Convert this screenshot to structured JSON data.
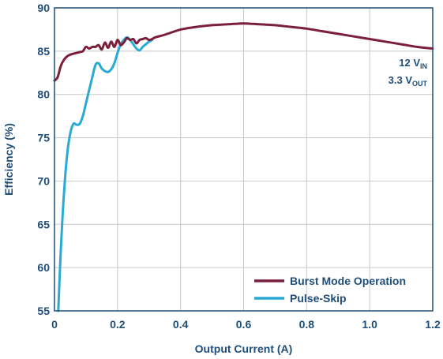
{
  "chart_data": {
    "type": "line",
    "xlabel": "Output Current (A)",
    "ylabel": "Efficiency (%)",
    "xlim": [
      0,
      1.2
    ],
    "ylim": [
      55,
      90
    ],
    "xticks": [
      "0",
      "0.2",
      "0.4",
      "0.6",
      "0.8",
      "1.0",
      "1.2"
    ],
    "yticks": [
      "55",
      "60",
      "65",
      "70",
      "75",
      "80",
      "85",
      "90"
    ],
    "grid": true,
    "legend_position": "bottom-right",
    "annotation": {
      "line1": {
        "main": "12 V",
        "sub": "IN"
      },
      "line2": {
        "main": "3.3 V",
        "sub": "OUT"
      }
    },
    "series": [
      {
        "name": "Burst Mode Operation",
        "color": "#7b1f3a",
        "x": [
          0.0,
          0.01,
          0.02,
          0.03,
          0.04,
          0.05,
          0.06,
          0.07,
          0.08,
          0.09,
          0.1,
          0.11,
          0.12,
          0.13,
          0.14,
          0.15,
          0.16,
          0.17,
          0.18,
          0.19,
          0.2,
          0.21,
          0.22,
          0.23,
          0.24,
          0.25,
          0.26,
          0.27,
          0.28,
          0.29,
          0.3,
          0.31,
          0.32,
          0.35,
          0.4,
          0.45,
          0.5,
          0.55,
          0.6,
          0.65,
          0.7,
          0.75,
          0.8,
          0.85,
          0.9,
          0.95,
          1.0,
          1.05,
          1.1,
          1.15,
          1.2
        ],
        "y": [
          81.6,
          82.0,
          83.3,
          84.0,
          84.4,
          84.6,
          84.7,
          84.8,
          84.9,
          85.0,
          85.5,
          85.3,
          85.5,
          85.5,
          85.7,
          85.2,
          86.0,
          85.4,
          86.1,
          85.5,
          86.3,
          85.7,
          86.0,
          86.5,
          86.3,
          86.4,
          85.9,
          86.3,
          86.4,
          86.5,
          86.3,
          86.4,
          86.6,
          86.9,
          87.5,
          87.8,
          88.0,
          88.1,
          88.2,
          88.1,
          88.0,
          87.8,
          87.6,
          87.3,
          87.0,
          86.7,
          86.4,
          86.1,
          85.8,
          85.5,
          85.3
        ]
      },
      {
        "name": "Pulse-Skip",
        "color": "#29a9d4",
        "x": [
          0.012,
          0.02,
          0.03,
          0.04,
          0.05,
          0.06,
          0.07,
          0.08,
          0.09,
          0.1,
          0.11,
          0.12,
          0.13,
          0.14,
          0.15,
          0.16,
          0.17,
          0.18,
          0.19,
          0.2,
          0.21,
          0.22,
          0.23,
          0.24,
          0.25,
          0.26,
          0.27,
          0.28,
          0.29,
          0.3,
          0.31
        ],
        "y": [
          55.0,
          62.0,
          68.5,
          73.0,
          75.5,
          76.6,
          76.5,
          76.6,
          77.5,
          79.0,
          80.5,
          82.0,
          83.4,
          83.6,
          83.0,
          82.7,
          82.6,
          82.9,
          83.6,
          84.8,
          85.8,
          86.3,
          86.6,
          86.3,
          85.8,
          85.3,
          85.1,
          85.5,
          85.8,
          86.1,
          86.3
        ]
      }
    ]
  }
}
